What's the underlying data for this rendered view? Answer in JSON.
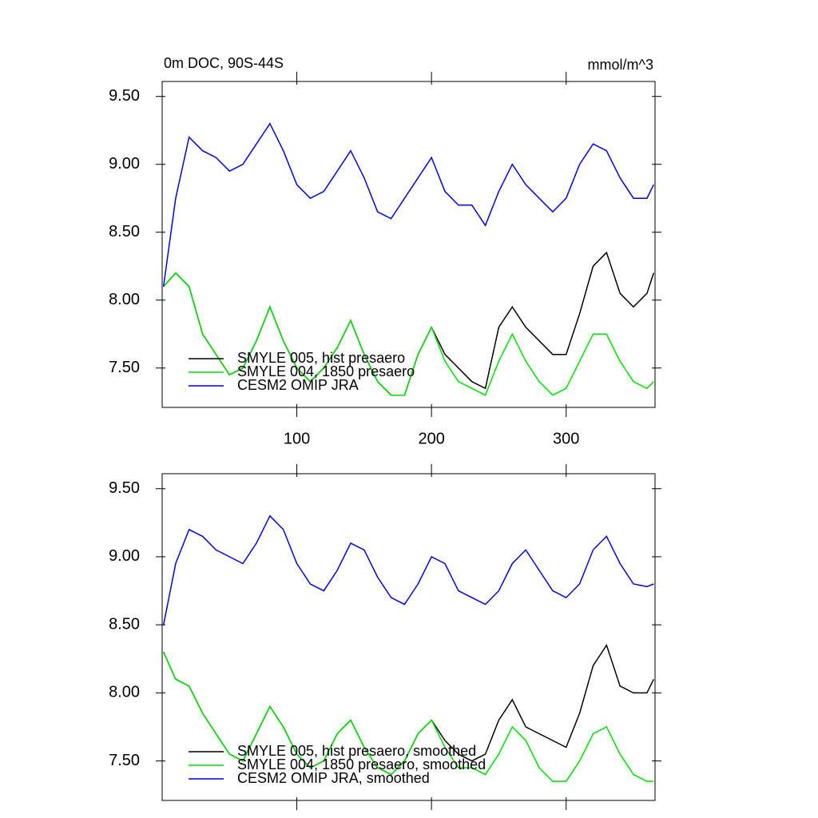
{
  "chart_data": [
    {
      "type": "line",
      "title": "0m DOC, 90S-44S",
      "units": "mmol/m^3",
      "x": [
        1,
        10,
        20,
        30,
        40,
        50,
        60,
        70,
        80,
        90,
        100,
        110,
        120,
        130,
        140,
        150,
        160,
        170,
        180,
        190,
        200,
        210,
        220,
        230,
        240,
        250,
        260,
        270,
        280,
        290,
        300,
        310,
        320,
        330,
        340,
        350,
        360,
        365
      ],
      "xlim": [
        0,
        366
      ],
      "xticks": [
        100,
        200,
        300
      ],
      "xtick_labels": true,
      "ylim": [
        7.21,
        9.61
      ],
      "yticks": [
        {
          "value": 7.5,
          "label": "7.50"
        },
        {
          "value": 8.0,
          "label": "8.00"
        },
        {
          "value": 8.5,
          "label": "8.50"
        },
        {
          "value": 9.0,
          "label": "9.00"
        },
        {
          "value": 9.5,
          "label": "9.50"
        }
      ],
      "series": [
        {
          "name": "SMYLE 005, hist presaero",
          "color": "#000000",
          "values": [
            8.1,
            8.2,
            8.1,
            7.75,
            7.6,
            7.45,
            7.5,
            7.7,
            7.95,
            7.7,
            7.5,
            7.4,
            7.5,
            7.65,
            7.85,
            7.6,
            7.4,
            7.3,
            7.3,
            7.6,
            7.8,
            7.6,
            7.5,
            7.4,
            7.35,
            7.8,
            7.95,
            7.8,
            7.7,
            7.6,
            7.6,
            7.9,
            8.25,
            8.35,
            8.05,
            7.95,
            8.05,
            8.2
          ]
        },
        {
          "name": "SMYLE 004, 1850 presaero",
          "color": "#00e000",
          "values": [
            8.1,
            8.2,
            8.1,
            7.75,
            7.6,
            7.45,
            7.5,
            7.7,
            7.95,
            7.7,
            7.5,
            7.4,
            7.5,
            7.65,
            7.85,
            7.6,
            7.4,
            7.3,
            7.3,
            7.6,
            7.8,
            7.55,
            7.4,
            7.35,
            7.3,
            7.55,
            7.75,
            7.55,
            7.4,
            7.3,
            7.35,
            7.55,
            7.75,
            7.75,
            7.55,
            7.4,
            7.35,
            7.4
          ]
        },
        {
          "name": "CESM2 OMIP JRA",
          "color": "#0000e0",
          "values": [
            8.1,
            8.75,
            9.2,
            9.1,
            9.05,
            8.95,
            9.0,
            9.15,
            9.3,
            9.1,
            8.85,
            8.75,
            8.8,
            8.95,
            9.1,
            8.9,
            8.65,
            8.6,
            8.75,
            8.9,
            9.05,
            8.8,
            8.7,
            8.7,
            8.55,
            8.8,
            9.0,
            8.85,
            8.75,
            8.65,
            8.75,
            9.0,
            9.15,
            9.1,
            8.9,
            8.75,
            8.75,
            8.85
          ]
        }
      ]
    },
    {
      "type": "line",
      "x": [
        1,
        10,
        20,
        30,
        40,
        50,
        60,
        70,
        80,
        90,
        100,
        110,
        120,
        130,
        140,
        150,
        160,
        170,
        180,
        190,
        200,
        210,
        220,
        230,
        240,
        250,
        260,
        270,
        280,
        290,
        300,
        310,
        320,
        330,
        340,
        350,
        360,
        365
      ],
      "xlim": [
        0,
        366
      ],
      "xticks": [
        100,
        200,
        300
      ],
      "xtick_labels": false,
      "ylim": [
        7.21,
        9.61
      ],
      "yticks": [
        {
          "value": 7.5,
          "label": "7.50"
        },
        {
          "value": 8.0,
          "label": "8.00"
        },
        {
          "value": 8.5,
          "label": "8.50"
        },
        {
          "value": 9.0,
          "label": "9.00"
        },
        {
          "value": 9.5,
          "label": "9.50"
        }
      ],
      "series": [
        {
          "name": "SMYLE 005, hist presaero, smoothed",
          "color": "#000000",
          "values": [
            8.3,
            8.1,
            8.05,
            7.85,
            7.7,
            7.55,
            7.5,
            7.7,
            7.9,
            7.75,
            7.55,
            7.45,
            7.5,
            7.7,
            7.8,
            7.6,
            7.45,
            7.4,
            7.5,
            7.7,
            7.8,
            7.65,
            7.55,
            7.5,
            7.55,
            7.8,
            7.95,
            7.75,
            7.7,
            7.65,
            7.6,
            7.85,
            8.2,
            8.35,
            8.05,
            8.0,
            8.0,
            8.1
          ]
        },
        {
          "name": "SMYLE 004, 1850 presaero, smoothed",
          "color": "#00e000",
          "values": [
            8.3,
            8.1,
            8.05,
            7.85,
            7.7,
            7.55,
            7.5,
            7.7,
            7.9,
            7.75,
            7.55,
            7.45,
            7.5,
            7.7,
            7.8,
            7.6,
            7.45,
            7.4,
            7.5,
            7.7,
            7.8,
            7.6,
            7.45,
            7.45,
            7.4,
            7.55,
            7.75,
            7.65,
            7.45,
            7.35,
            7.35,
            7.5,
            7.7,
            7.75,
            7.55,
            7.4,
            7.35,
            7.35
          ]
        },
        {
          "name": "CESM2 OMIP JRA, smoothed",
          "color": "#0000e0",
          "values": [
            8.5,
            8.95,
            9.2,
            9.15,
            9.05,
            9.0,
            8.95,
            9.1,
            9.3,
            9.2,
            8.95,
            8.8,
            8.75,
            8.9,
            9.1,
            9.05,
            8.85,
            8.7,
            8.65,
            8.8,
            9.0,
            8.95,
            8.75,
            8.7,
            8.65,
            8.75,
            8.95,
            9.05,
            8.9,
            8.75,
            8.7,
            8.8,
            9.05,
            9.15,
            8.95,
            8.8,
            8.78,
            8.8
          ]
        }
      ]
    }
  ]
}
